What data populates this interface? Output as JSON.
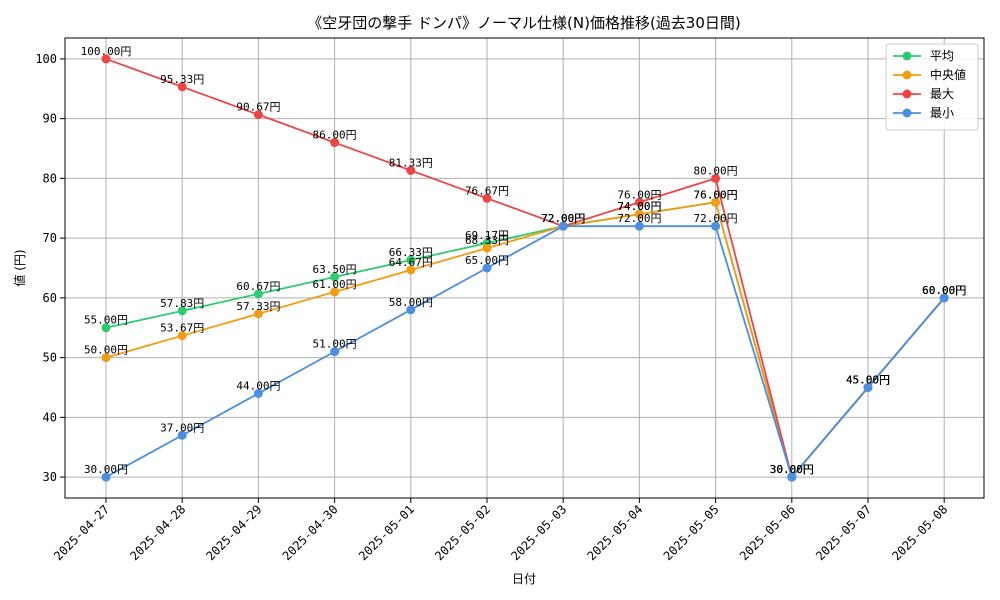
{
  "chart_data": {
    "type": "line",
    "title": "《空牙団の撃手 ドンパ》ノーマル仕様(N)価格推移(過去30日間)",
    "xlabel": "日付",
    "ylabel": "値 (円)",
    "categories": [
      "2025-04-27",
      "2025-04-28",
      "2025-04-29",
      "2025-04-30",
      "2025-05-01",
      "2025-05-02",
      "2025-05-03",
      "2025-05-04",
      "2025-05-05",
      "2025-05-06",
      "2025-05-07",
      "2025-05-08"
    ],
    "ylim": [
      26.5,
      103.5
    ],
    "yticks": [
      30,
      40,
      50,
      60,
      70,
      80,
      90,
      100
    ],
    "grid": true,
    "legend_position": "top-right",
    "label_suffix": "円",
    "series": [
      {
        "name": "平均",
        "color": "#2ecc71",
        "values": [
          55.0,
          57.83,
          60.67,
          63.5,
          66.33,
          69.17,
          72.0,
          74.0,
          76.0,
          30.0,
          45.0,
          60.0
        ]
      },
      {
        "name": "中央値",
        "color": "#f39c12",
        "values": [
          50.0,
          53.67,
          57.33,
          61.0,
          64.67,
          68.33,
          72.0,
          74.0,
          76.0,
          30.0,
          45.0,
          60.0
        ]
      },
      {
        "name": "最大",
        "color": "#ef4444",
        "values": [
          100.0,
          95.33,
          90.67,
          86.0,
          81.33,
          76.67,
          72.0,
          76.0,
          80.0,
          30.0,
          45.0,
          60.0
        ]
      },
      {
        "name": "最小",
        "color": "#4a90e2",
        "values": [
          30.0,
          37.0,
          44.0,
          51.0,
          58.0,
          65.0,
          72.0,
          72.0,
          72.0,
          30.0,
          45.0,
          60.0
        ]
      }
    ]
  }
}
